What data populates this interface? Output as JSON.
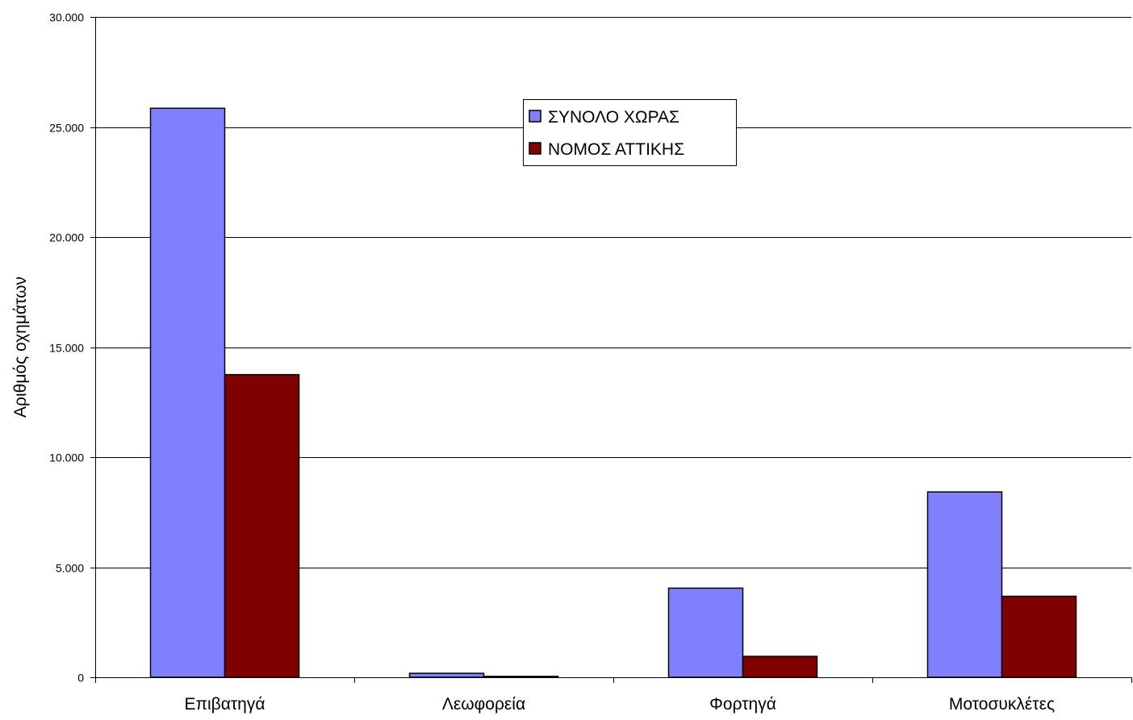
{
  "chart_data": {
    "type": "bar",
    "title": "",
    "xlabel": "",
    "ylabel": "Αριθμός οχημάτων",
    "ylim": [
      0,
      30000
    ],
    "yticks": [
      0,
      5000,
      10000,
      15000,
      20000,
      25000,
      30000
    ],
    "ytick_labels": [
      "0",
      "5.000",
      "10.000",
      "15.000",
      "20.000",
      "25.000",
      "30.000"
    ],
    "categories": [
      "Επιβατηγά",
      "Λεωφορεία",
      "Φορτηγά",
      "Μοτοσυκλέτες"
    ],
    "series": [
      {
        "name": "ΣΥΝΟΛΟ ΧΩΡΑΣ",
        "color": "#8080ff",
        "values": [
          25850,
          180,
          4050,
          8420
        ]
      },
      {
        "name": "ΝΟΜΟΣ ΑΤΤΙΚΗΣ",
        "color": "#800000",
        "values": [
          13750,
          40,
          950,
          3680
        ]
      }
    ],
    "grid": "horizontal",
    "legend_position": "top-center"
  }
}
